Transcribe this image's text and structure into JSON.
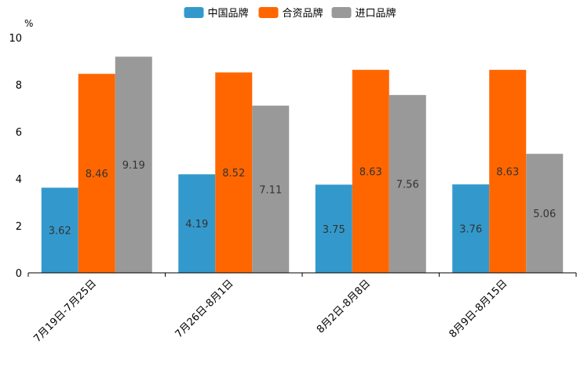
{
  "chart_data": {
    "type": "bar",
    "title": "",
    "xlabel": "",
    "ylabel": "%",
    "ylim": [
      0,
      10
    ],
    "yticks": [
      "0",
      "2",
      "4",
      "6",
      "8",
      "10"
    ],
    "grid": false,
    "legend_position": "top-center",
    "categories": [
      "7月19日-7月25日",
      "7月26日-8月1日",
      "8月2日-8月8日",
      "8月9日-8月15日"
    ],
    "series": [
      {
        "name": "中国品牌",
        "color": "#3399cc",
        "values": [
          3.62,
          4.19,
          3.75,
          3.76
        ]
      },
      {
        "name": "合资品牌",
        "color": "#ff6600",
        "values": [
          8.46,
          8.52,
          8.63,
          8.63
        ]
      },
      {
        "name": "进口品牌",
        "color": "#999999",
        "values": [
          9.19,
          7.11,
          7.56,
          5.06
        ]
      }
    ]
  }
}
